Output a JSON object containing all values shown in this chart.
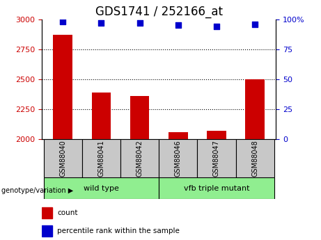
{
  "title": "GDS1741 / 252166_at",
  "samples": [
    "GSM88040",
    "GSM88041",
    "GSM88042",
    "GSM88046",
    "GSM88047",
    "GSM88048"
  ],
  "counts": [
    2870,
    2390,
    2360,
    2060,
    2070,
    2500
  ],
  "percentile_ranks": [
    98,
    97,
    97,
    95,
    94,
    96
  ],
  "ylim_left": [
    2000,
    3000
  ],
  "ylim_right": [
    0,
    100
  ],
  "yticks_left": [
    2000,
    2250,
    2500,
    2750,
    3000
  ],
  "yticks_right": [
    0,
    25,
    50,
    75,
    100
  ],
  "bar_color": "#CC0000",
  "dot_color": "#0000CC",
  "bar_width": 0.5,
  "tick_label_color_left": "#CC0000",
  "tick_label_color_right": "#0000CC",
  "title_fontsize": 12,
  "legend_items": [
    {
      "label": "count",
      "color": "#CC0000"
    },
    {
      "label": "percentile rank within the sample",
      "color": "#0000CC"
    }
  ],
  "genotype_label": "genotype/variation",
  "group_bg_color": "#C8C8C8",
  "group_label_bg": "#90EE90",
  "wild_type_label": "wild type",
  "vfb_label": "vfb triple mutant"
}
